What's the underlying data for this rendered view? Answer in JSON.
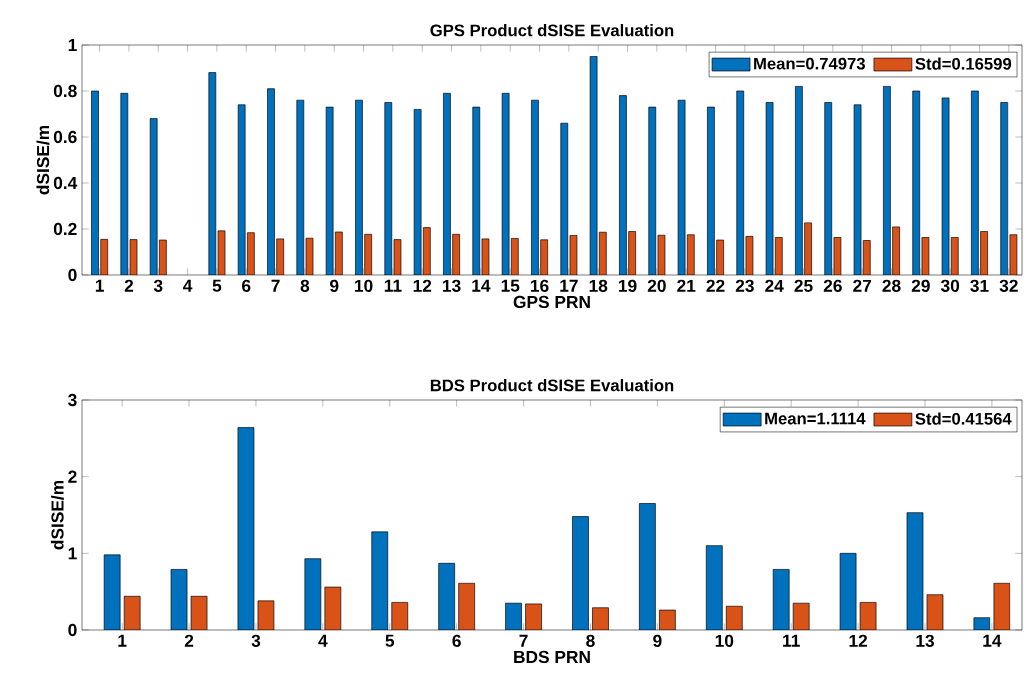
{
  "chart_data": [
    {
      "type": "bar",
      "title": "GPS Product dSISE Evaluation",
      "xlabel": "GPS PRN",
      "ylabel": "dSISE/m",
      "categories": [
        "1",
        "2",
        "3",
        "4",
        "5",
        "6",
        "7",
        "8",
        "9",
        "10",
        "11",
        "12",
        "13",
        "14",
        "15",
        "16",
        "17",
        "18",
        "19",
        "20",
        "21",
        "22",
        "23",
        "24",
        "25",
        "26",
        "27",
        "28",
        "29",
        "30",
        "31",
        "32"
      ],
      "series": [
        {
          "name": "Mean=0.74973",
          "color": "#0072bd",
          "values": [
            0.8,
            0.79,
            0.68,
            null,
            0.88,
            0.74,
            0.81,
            0.76,
            0.73,
            0.76,
            0.75,
            0.72,
            0.79,
            0.73,
            0.79,
            0.76,
            0.66,
            0.95,
            0.78,
            0.73,
            0.76,
            0.73,
            0.8,
            0.75,
            0.82,
            0.75,
            0.74,
            0.82,
            0.8,
            0.77,
            0.8,
            0.75
          ]
        },
        {
          "name": "Std=0.16599",
          "color": "#d95319",
          "values": [
            0.155,
            0.154,
            0.152,
            null,
            0.192,
            0.184,
            0.157,
            0.16,
            0.187,
            0.177,
            0.154,
            0.206,
            0.177,
            0.157,
            0.159,
            0.153,
            0.172,
            0.186,
            0.189,
            0.173,
            0.175,
            0.152,
            0.168,
            0.163,
            0.227,
            0.163,
            0.15,
            0.209,
            0.163,
            0.163,
            0.189,
            0.175
          ]
        }
      ],
      "ylim": [
        0,
        1
      ],
      "yticks": [
        0,
        0.2,
        0.4,
        0.6,
        0.8,
        1
      ],
      "legend": "top right"
    },
    {
      "type": "bar",
      "title": "BDS Product dSISE Evaluation",
      "xlabel": "BDS PRN",
      "ylabel": "dSISE/m",
      "categories": [
        "1",
        "2",
        "3",
        "4",
        "5",
        "6",
        "7",
        "8",
        "9",
        "10",
        "11",
        "12",
        "13",
        "14"
      ],
      "series": [
        {
          "name": "Mean=1.1114",
          "color": "#0072bd",
          "values": [
            0.98,
            0.79,
            2.64,
            0.93,
            1.28,
            0.87,
            0.35,
            1.48,
            1.65,
            1.1,
            0.79,
            1.0,
            1.53,
            0.16
          ]
        },
        {
          "name": "Std=0.41564",
          "color": "#d95319",
          "values": [
            0.44,
            0.44,
            0.38,
            0.56,
            0.36,
            0.61,
            0.34,
            0.29,
            0.26,
            0.31,
            0.35,
            0.36,
            0.46,
            0.61
          ]
        }
      ],
      "ylim": [
        0,
        3
      ],
      "yticks": [
        0,
        1,
        2,
        3
      ],
      "legend": "top right"
    }
  ]
}
